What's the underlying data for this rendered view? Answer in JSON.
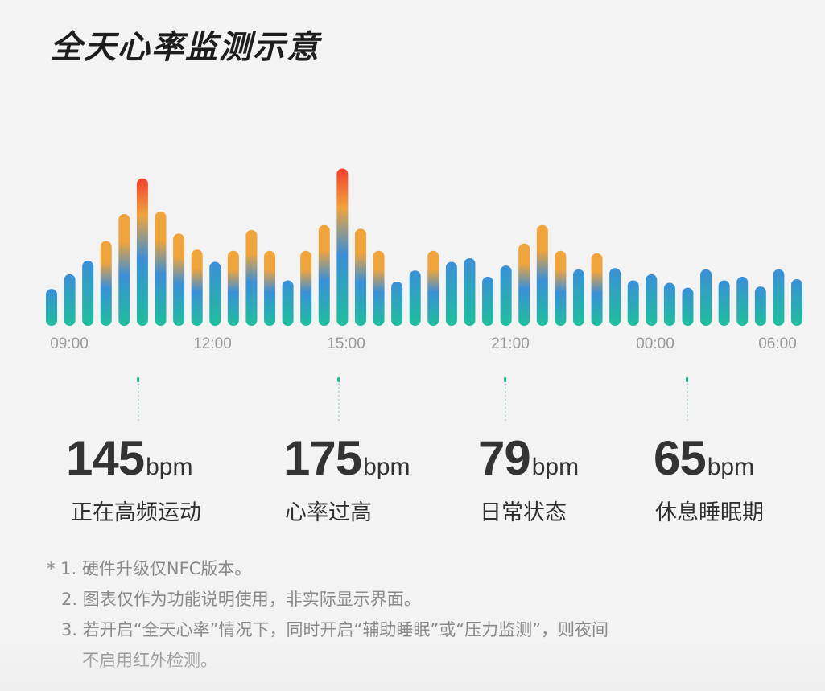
{
  "title": "全天心率监测示意",
  "chart_data": {
    "type": "bar",
    "title": "全天心率监测示意",
    "x_ticks": [
      "09:00",
      "12:00",
      "15:00",
      "21:00",
      "00:00",
      "06:00"
    ],
    "ylim": [
      0,
      180
    ],
    "values": [
      30,
      42,
      53,
      69,
      91,
      120,
      93,
      75,
      62,
      52,
      61,
      78,
      61,
      37,
      61,
      82,
      128,
      79,
      61,
      36,
      45,
      61,
      52,
      55,
      40,
      49,
      67,
      82,
      61,
      46,
      59,
      47,
      37,
      42,
      35,
      31,
      46,
      37,
      40,
      32,
      46,
      38
    ],
    "colors": {
      "low": "#1ebf9c",
      "mid": "#3a8fd8",
      "warm": "#f0a43c",
      "hot": "#f5402c"
    },
    "grid": false,
    "legend": "none"
  },
  "stats": [
    {
      "value": "145",
      "unit": "bpm",
      "label": "正在高频运动"
    },
    {
      "value": "175",
      "unit": "bpm",
      "label": "心率过高"
    },
    {
      "value": "79",
      "unit": "bpm",
      "label": "日常状态"
    },
    {
      "value": "65",
      "unit": "bpm",
      "label": "休息睡眠期"
    }
  ],
  "notes": [
    "* 1. 硬件升级仅NFC版本。",
    "2. 图表仅作为功能说明使用，非实际显示界面。",
    "3. 若开启“全天心率”情况下，同时开启“辅助睡眠”或“压力监测”，则夜间",
    "不启用红外检测。"
  ]
}
